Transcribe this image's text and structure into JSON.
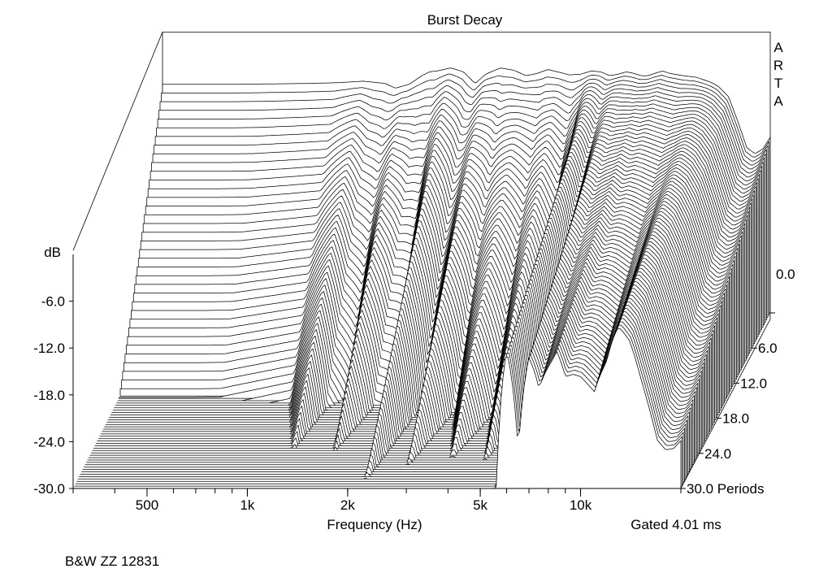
{
  "chart_data": {
    "type": "waterfall",
    "title": "Burst Decay",
    "branding": "ARTA",
    "footer": "B&W ZZ 12831",
    "z_label": "dB",
    "x_label": "Frequency (Hz)",
    "note": "Gated 4.01 ms",
    "z_ticks": [
      "-6.0",
      "-12.0",
      "-18.0",
      "-24.0",
      "-30.0"
    ],
    "z_range": [
      -30,
      0
    ],
    "x_ticks": [
      "500",
      "1k",
      "2k",
      "5k",
      "10k"
    ],
    "x_tick_values": [
      500,
      1000,
      2000,
      5000,
      10000
    ],
    "x_range": [
      300,
      20000
    ],
    "x_scale": "log",
    "depth_ticks": [
      "0.0",
      "6.0",
      "12.0",
      "18.0",
      "24.0",
      "30.0 Periods"
    ],
    "depth_range": [
      0,
      30
    ],
    "depth_unit": "Periods",
    "num_slices": 75,
    "front_curve": {
      "freqs": [
        300,
        500,
        800,
        1000,
        1200,
        1400,
        1500,
        1650,
        1800,
        1900,
        2000,
        2200,
        2400,
        2600,
        2800,
        3100,
        3400,
        3700,
        4000,
        4300,
        4600,
        5000,
        5400,
        5800,
        6200,
        6600,
        7000,
        7400,
        7800,
        8200,
        8600,
        9000,
        9500,
        10000,
        11000,
        12000,
        13000,
        13500,
        14000,
        15000,
        16000,
        17000,
        18000,
        19000,
        20000
      ],
      "db": [
        -0.7,
        -0.7,
        -0.6,
        -0.5,
        -0.3,
        -0.6,
        -1.2,
        -0.7,
        0.4,
        0.9,
        1.0,
        1.4,
        0.9,
        -0.6,
        0.6,
        1.4,
        1.1,
        0.4,
        0.7,
        1.2,
        0.9,
        0.5,
        0.6,
        1.0,
        0.9,
        0.4,
        0.6,
        0.9,
        0.7,
        0.4,
        0.4,
        0.7,
        1.0,
        0.7,
        0.4,
        0.2,
        -0.3,
        -0.6,
        -1.0,
        -2.3,
        -5.5,
        -8.8,
        -9.6,
        -9.0,
        -7.5
      ]
    },
    "decay_profile": {
      "freqs": [
        300,
        600,
        1000,
        1200,
        1300,
        1450,
        1600,
        1800,
        2000,
        2200,
        2500,
        2800,
        3200,
        3700,
        4200,
        4700,
        5200,
        5600,
        6000,
        6500,
        7000,
        7500,
        8000,
        8500,
        9000,
        10000,
        11000,
        12000,
        13000,
        14000,
        15000,
        17000,
        20000
      ],
      "decay_periods": [
        3.0,
        3.0,
        3.2,
        4.8,
        3.4,
        3.0,
        5.0,
        3.2,
        3.0,
        5.6,
        3.2,
        5.2,
        3.2,
        5.0,
        3.4,
        5.0,
        3.4,
        6.0,
        13.5,
        7.0,
        13.0,
        10.0,
        12.0,
        14.0,
        11.0,
        11.0,
        10.0,
        13.0,
        20.0,
        18.0,
        14.0,
        12.0,
        11.0
      ]
    }
  }
}
